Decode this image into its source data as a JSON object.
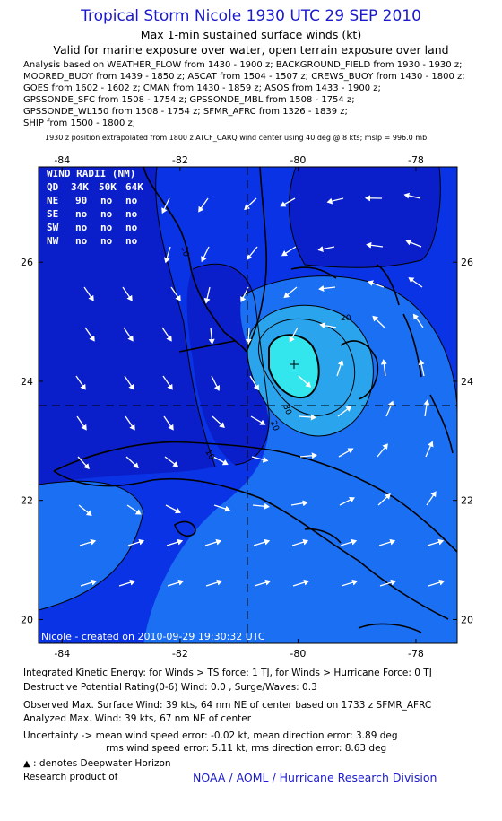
{
  "header": {
    "title": "Tropical Storm Nicole 1930 UTC 29 SEP 2010",
    "subtitle1": "Max 1-min sustained surface winds (kt)",
    "subtitle2": "Valid for marine exposure over water, open terrain exposure over land"
  },
  "analysis_lines": [
    "Analysis based on WEATHER_FLOW from 1430 - 1900 z; BACKGROUND_FIELD from 1930 - 1930 z;",
    "MOORED_BUOY from 1439 - 1850 z; ASCAT from 1504 - 1507 z; CREWS_BUOY from 1430 - 1800 z;",
    "GOES from 1602 - 1602 z; CMAN from 1430 - 1859 z; ASOS from 1433 - 1900 z;",
    "GPSSONDE_SFC from 1508 - 1754 z; GPSSONDE_MBL from 1508 - 1754 z;",
    "GPSSONDE_WL150 from 1508 - 1754 z; SFMR_AFRC from 1326 - 1839 z;",
    "SHIP from 1500 - 1800 z;"
  ],
  "position_note": "1930 z position extrapolated from 1800 z ATCF_CARQ wind center using 40 deg @ 8 kts; mslp = 996.0 mb",
  "map": {
    "lon_ticks": [
      "-84",
      "-82",
      "-80",
      "-78"
    ],
    "lat_ticks": [
      "26",
      "24",
      "22",
      "20"
    ],
    "lon_range": [
      -84.4,
      -77.3
    ],
    "lat_range": [
      19.6,
      27.6
    ],
    "center": {
      "lon": -79.6,
      "lat": 24.35
    },
    "contour_labels": [
      "20",
      "20",
      "30",
      "10",
      "10"
    ],
    "created_label": "Nicole - created on 2010-09-29 19:30:32 UTC",
    "colors": {
      "background_field": "#0a33e6",
      "low_wind": "#0a1fc9",
      "mid_wind": "#1a6ff2",
      "high_wind": "#2aa4ec",
      "core_wind": "#33e6ee",
      "land_outline": "#000000",
      "arrow": "#ffffff"
    }
  },
  "wind_radii": {
    "title": "WIND RADII (NM)",
    "header": [
      "QD",
      "34K",
      "50K",
      "64K"
    ],
    "rows": [
      [
        "NE",
        "90",
        "no",
        "no"
      ],
      [
        "SE",
        "no",
        "no",
        "no"
      ],
      [
        "SW",
        "no",
        "no",
        "no"
      ],
      [
        "NW",
        "no",
        "no",
        "no"
      ]
    ]
  },
  "footer": {
    "ike": "Integrated Kinetic Energy:  for Winds > TS force: 1 TJ,  for Winds > Hurricane Force: 0 TJ",
    "dpr": "Destructive Potential Rating(0-6)   Wind: 0.0 , Surge/Waves: 0.3",
    "observed": "Observed Max. Surface Wind: 39 kts, 64 nm NE of center based on 1733 z SFMR_AFRC",
    "analyzed": "Analyzed Max. Wind: 39 kts, 67 nm NE of center",
    "uncertainty1": "Uncertainty -> mean wind speed error:  -0.02 kt,    mean direction error: 3.89 deg",
    "uncertainty2": "rms wind speed error:  5.11 kt,   rms direction error: 8.63 deg",
    "deepwater": ": denotes Deepwater Horizon",
    "research": "Research product of",
    "noaa": "NOAA / AOML / Hurricane Research Division"
  }
}
